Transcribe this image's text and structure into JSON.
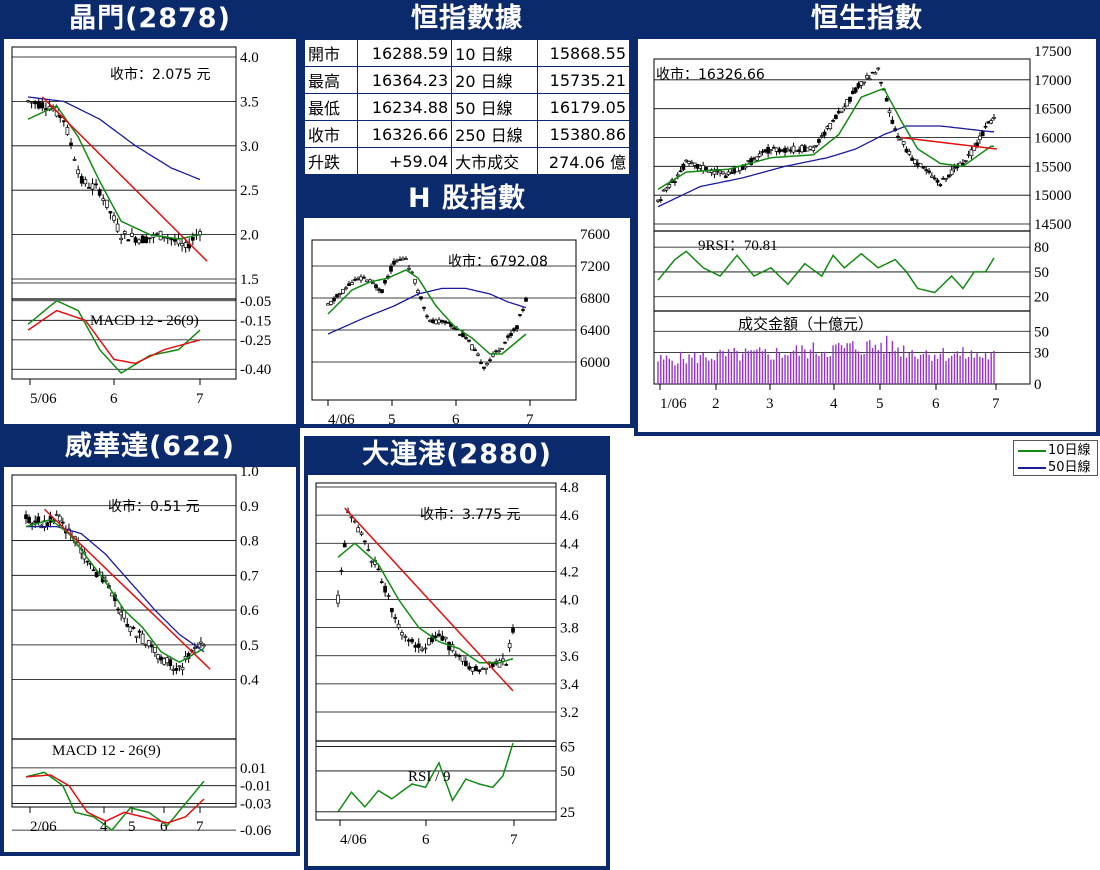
{
  "colors": {
    "panel_bg": "#0b2a6b",
    "ma10": "#138a13",
    "ma50": "#1a1a9c",
    "trend": "#e01010",
    "volume": "#9a30d0",
    "candle": "#000000"
  },
  "legend": {
    "ma10": "10日線",
    "ma50": "50日線"
  },
  "hsi_table": {
    "title": "恒指數據",
    "rows": [
      [
        "開市",
        "16288.59",
        "10 日線",
        "15868.55"
      ],
      [
        "最高",
        "16364.23",
        "20 日線",
        "15735.21"
      ],
      [
        "最低",
        "16234.88",
        "50 日線",
        "16179.05"
      ],
      [
        "收市",
        "16326.66",
        "250 日線",
        "15380.86"
      ],
      [
        "升跌",
        "+59.04",
        "大市成交",
        "274.06 億"
      ]
    ]
  },
  "chart_data": [
    {
      "id": "jingmen",
      "title": "晶門(2878)",
      "type": "candlestick",
      "close_label": "收市：2.075 元",
      "price_ticks": [
        "4.0",
        "3.5",
        "3.0",
        "2.5",
        "2.0",
        "1.5"
      ],
      "ylim": [
        1.5,
        4.0
      ],
      "x_ticks": [
        "5/06",
        "6",
        "7"
      ],
      "price_keypoints": [
        [
          0,
          3.5
        ],
        [
          6,
          3.45
        ],
        [
          10,
          3.3
        ],
        [
          15,
          2.6
        ],
        [
          20,
          2.5
        ],
        [
          26,
          2.0
        ],
        [
          32,
          1.95
        ],
        [
          38,
          2.0
        ],
        [
          44,
          1.85
        ],
        [
          48,
          2.05
        ]
      ],
      "ma10_keypoints": [
        [
          0,
          3.3
        ],
        [
          8,
          3.45
        ],
        [
          14,
          3.1
        ],
        [
          20,
          2.6
        ],
        [
          26,
          2.15
        ],
        [
          34,
          2.0
        ],
        [
          42,
          1.95
        ],
        [
          48,
          2.0
        ]
      ],
      "ma50_keypoints": [
        [
          0,
          3.55
        ],
        [
          10,
          3.5
        ],
        [
          20,
          3.3
        ],
        [
          30,
          3.0
        ],
        [
          40,
          2.75
        ],
        [
          48,
          2.62
        ]
      ],
      "trend": [
        [
          4,
          3.55
        ],
        [
          50,
          1.7
        ]
      ],
      "sub": {
        "label": "MACD 12 - 26(9)",
        "ticks": [
          "-0.05",
          "-0.15",
          "-0.25",
          "-0.40"
        ],
        "ylim": [
          -0.45,
          0.0
        ],
        "macd": [
          [
            0,
            -0.17
          ],
          [
            8,
            -0.05
          ],
          [
            14,
            -0.1
          ],
          [
            20,
            -0.3
          ],
          [
            26,
            -0.42
          ],
          [
            34,
            -0.33
          ],
          [
            42,
            -0.3
          ],
          [
            48,
            -0.2
          ]
        ],
        "signal": [
          [
            0,
            -0.2
          ],
          [
            8,
            -0.1
          ],
          [
            16,
            -0.15
          ],
          [
            24,
            -0.35
          ],
          [
            30,
            -0.37
          ],
          [
            38,
            -0.3
          ],
          [
            48,
            -0.25
          ]
        ]
      }
    },
    {
      "id": "hsi",
      "title": "恒生指數",
      "type": "candlestick",
      "close_label": "收市：16326.66",
      "price_ticks": [
        "17500",
        "17000",
        "16500",
        "16000",
        "15500",
        "15000",
        "14500"
      ],
      "ylim": [
        14500,
        17500
      ],
      "x_ticks": [
        "1/06",
        "2",
        "3",
        "4",
        "5",
        "6",
        "7"
      ],
      "price_keypoints": [
        [
          0,
          14900
        ],
        [
          10,
          15550
        ],
        [
          25,
          15350
        ],
        [
          40,
          15800
        ],
        [
          55,
          15800
        ],
        [
          64,
          16400
        ],
        [
          72,
          16950
        ],
        [
          78,
          17150
        ],
        [
          84,
          16100
        ],
        [
          90,
          15650
        ],
        [
          100,
          15200
        ],
        [
          110,
          15650
        ],
        [
          118,
          16300
        ]
      ],
      "ma10_keypoints": [
        [
          0,
          15100
        ],
        [
          10,
          15400
        ],
        [
          25,
          15450
        ],
        [
          40,
          15650
        ],
        [
          55,
          15700
        ],
        [
          64,
          16050
        ],
        [
          72,
          16700
        ],
        [
          80,
          16850
        ],
        [
          86,
          16300
        ],
        [
          92,
          15800
        ],
        [
          100,
          15550
        ],
        [
          108,
          15500
        ],
        [
          118,
          15850
        ]
      ],
      "ma50_keypoints": [
        [
          0,
          14800
        ],
        [
          15,
          15150
        ],
        [
          30,
          15300
        ],
        [
          45,
          15500
        ],
        [
          60,
          15650
        ],
        [
          70,
          15800
        ],
        [
          80,
          16050
        ],
        [
          88,
          16200
        ],
        [
          100,
          16200
        ],
        [
          118,
          16100
        ]
      ],
      "trend": [
        [
          86,
          16000
        ],
        [
          120,
          15800
        ]
      ],
      "sub": {
        "label": "9RSI：70.81",
        "ticks": [
          "80",
          "50",
          "20"
        ],
        "ylim": [
          10,
          85
        ],
        "rsi": [
          [
            0,
            40
          ],
          [
            6,
            65
          ],
          [
            10,
            75
          ],
          [
            16,
            55
          ],
          [
            22,
            45
          ],
          [
            28,
            70
          ],
          [
            34,
            45
          ],
          [
            40,
            55
          ],
          [
            46,
            35
          ],
          [
            52,
            60
          ],
          [
            58,
            45
          ],
          [
            62,
            70
          ],
          [
            66,
            55
          ],
          [
            72,
            72
          ],
          [
            78,
            55
          ],
          [
            84,
            65
          ],
          [
            88,
            50
          ],
          [
            92,
            30
          ],
          [
            98,
            25
          ],
          [
            104,
            45
          ],
          [
            108,
            30
          ],
          [
            112,
            50
          ],
          [
            116,
            50
          ],
          [
            119,
            67
          ]
        ]
      },
      "volume": {
        "label": "成交金額（十億元）",
        "ticks": [
          "50",
          "30",
          "0"
        ],
        "ylim": [
          0,
          55
        ],
        "keypoints": [
          [
            0,
            22
          ],
          [
            20,
            26
          ],
          [
            40,
            28
          ],
          [
            60,
            32
          ],
          [
            80,
            36
          ],
          [
            90,
            30
          ],
          [
            100,
            28
          ],
          [
            119,
            26
          ]
        ]
      }
    },
    {
      "id": "hshares",
      "title": "H 股指數",
      "type": "candlestick",
      "close_label": "收市：6792.08",
      "price_ticks": [
        "7600",
        "7200",
        "6800",
        "6400",
        "6000"
      ],
      "ylim": [
        5800,
        7600
      ],
      "x_ticks": [
        "4/06",
        "5",
        "6",
        "7"
      ],
      "price_keypoints": [
        [
          0,
          6700
        ],
        [
          8,
          7000
        ],
        [
          12,
          7050
        ],
        [
          18,
          6900
        ],
        [
          22,
          7250
        ],
        [
          26,
          7300
        ],
        [
          30,
          6900
        ],
        [
          34,
          6500
        ],
        [
          40,
          6500
        ],
        [
          46,
          6300
        ],
        [
          52,
          5950
        ],
        [
          58,
          6200
        ],
        [
          63,
          6450
        ],
        [
          66,
          6780
        ]
      ],
      "ma10_keypoints": [
        [
          0,
          6600
        ],
        [
          8,
          6900
        ],
        [
          14,
          7000
        ],
        [
          20,
          7050
        ],
        [
          26,
          7150
        ],
        [
          30,
          7050
        ],
        [
          36,
          6700
        ],
        [
          42,
          6450
        ],
        [
          48,
          6300
        ],
        [
          54,
          6100
        ],
        [
          58,
          6100
        ],
        [
          66,
          6350
        ]
      ],
      "ma50_keypoints": [
        [
          0,
          6350
        ],
        [
          12,
          6550
        ],
        [
          22,
          6700
        ],
        [
          30,
          6850
        ],
        [
          38,
          6920
        ],
        [
          46,
          6920
        ],
        [
          54,
          6850
        ],
        [
          60,
          6750
        ],
        [
          66,
          6680
        ]
      ]
    },
    {
      "id": "weihuada",
      "title": "威華達(622)",
      "type": "candlestick",
      "close_label": "收市：0.51 元",
      "price_ticks": [
        "1.0",
        "0.9",
        "0.8",
        "0.7",
        "0.6",
        "0.5",
        "0.4"
      ],
      "ylim": [
        0.35,
        1.0
      ],
      "x_ticks": [
        "2/06",
        "4",
        "5",
        "6",
        "7"
      ],
      "price_keypoints": [
        [
          0,
          0.86
        ],
        [
          6,
          0.85
        ],
        [
          10,
          0.87
        ],
        [
          16,
          0.8
        ],
        [
          22,
          0.72
        ],
        [
          28,
          0.65
        ],
        [
          34,
          0.55
        ],
        [
          40,
          0.5
        ],
        [
          46,
          0.45
        ],
        [
          50,
          0.43
        ],
        [
          54,
          0.48
        ],
        [
          58,
          0.51
        ]
      ],
      "ma10_keypoints": [
        [
          0,
          0.84
        ],
        [
          8,
          0.86
        ],
        [
          14,
          0.82
        ],
        [
          20,
          0.75
        ],
        [
          26,
          0.68
        ],
        [
          32,
          0.6
        ],
        [
          38,
          0.55
        ],
        [
          44,
          0.48
        ],
        [
          50,
          0.45
        ],
        [
          56,
          0.48
        ],
        [
          58,
          0.49
        ]
      ],
      "ma50_keypoints": [
        [
          0,
          0.84
        ],
        [
          10,
          0.84
        ],
        [
          18,
          0.82
        ],
        [
          26,
          0.76
        ],
        [
          34,
          0.68
        ],
        [
          42,
          0.6
        ],
        [
          50,
          0.53
        ],
        [
          58,
          0.48
        ]
      ],
      "trend": [
        [
          6,
          0.89
        ],
        [
          60,
          0.43
        ]
      ],
      "sub": {
        "label": "MACD 12 - 26(9)",
        "ticks": [
          "0.01",
          "-0.01",
          "-0.03",
          "-0.06"
        ],
        "ylim": [
          -0.07,
          0.02
        ],
        "macd": [
          [
            0,
            0.0
          ],
          [
            6,
            0.005
          ],
          [
            12,
            -0.01
          ],
          [
            16,
            -0.04
          ],
          [
            22,
            -0.045
          ],
          [
            28,
            -0.06
          ],
          [
            34,
            -0.035
          ],
          [
            40,
            -0.04
          ],
          [
            46,
            -0.055
          ],
          [
            52,
            -0.03
          ],
          [
            58,
            -0.005
          ]
        ],
        "signal": [
          [
            0,
            0.0
          ],
          [
            8,
            0.002
          ],
          [
            14,
            -0.01
          ],
          [
            20,
            -0.04
          ],
          [
            26,
            -0.05
          ],
          [
            32,
            -0.04
          ],
          [
            38,
            -0.045
          ],
          [
            46,
            -0.052
          ],
          [
            52,
            -0.045
          ],
          [
            58,
            -0.025
          ]
        ]
      }
    },
    {
      "id": "dalian",
      "title": "大連港(2880)",
      "type": "candlestick",
      "close_label": "收市：3.775 元",
      "price_ticks": [
        "4.8",
        "4.6",
        "4.4",
        "4.2",
        "4.0",
        "3.8",
        "3.6",
        "3.4",
        "3.2"
      ],
      "ylim": [
        3.2,
        4.8
      ],
      "x_ticks": [
        "4/06",
        "6",
        "7"
      ],
      "price_keypoints": [
        [
          0,
          4.0
        ],
        [
          3,
          4.6
        ],
        [
          7,
          4.45
        ],
        [
          12,
          4.2
        ],
        [
          18,
          3.8
        ],
        [
          24,
          3.65
        ],
        [
          30,
          3.75
        ],
        [
          36,
          3.6
        ],
        [
          40,
          3.5
        ],
        [
          46,
          3.55
        ],
        [
          50,
          3.55
        ],
        [
          52,
          3.78
        ]
      ],
      "ma10_keypoints": [
        [
          0,
          4.3
        ],
        [
          5,
          4.4
        ],
        [
          12,
          4.25
        ],
        [
          18,
          4.0
        ],
        [
          24,
          3.8
        ],
        [
          30,
          3.7
        ],
        [
          36,
          3.65
        ],
        [
          42,
          3.55
        ],
        [
          48,
          3.55
        ],
        [
          52,
          3.58
        ]
      ],
      "trend": [
        [
          2,
          4.65
        ],
        [
          52,
          3.35
        ]
      ],
      "sub": {
        "label": "RSI / 9",
        "ticks": [
          "65",
          "50",
          "25"
        ],
        "ylim": [
          20,
          72
        ],
        "rsi": [
          [
            0,
            25
          ],
          [
            4,
            37
          ],
          [
            8,
            28
          ],
          [
            12,
            38
          ],
          [
            16,
            33
          ],
          [
            22,
            42
          ],
          [
            26,
            40
          ],
          [
            30,
            55
          ],
          [
            34,
            32
          ],
          [
            38,
            45
          ],
          [
            42,
            42
          ],
          [
            46,
            40
          ],
          [
            49,
            47
          ],
          [
            52,
            67
          ]
        ]
      }
    }
  ]
}
